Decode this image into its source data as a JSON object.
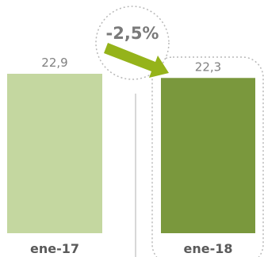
{
  "chart_data": {
    "type": "bar",
    "categories": [
      "ene-17",
      "ene-18"
    ],
    "values": [
      22.9,
      22.3
    ],
    "value_labels": [
      "22,9",
      "22,3"
    ],
    "change_label": "-2,5%",
    "title": "",
    "xlabel": "",
    "ylabel": "",
    "grid": false,
    "colors": {
      "bar_1": "#c4d7a0",
      "bar_2": "#7a983d",
      "arrow": "#95b31a",
      "circle_border": "#b8b8b8",
      "value_text": "#808080",
      "category_text": "#5a5a5a",
      "change_text": "#7a7a7a"
    }
  }
}
